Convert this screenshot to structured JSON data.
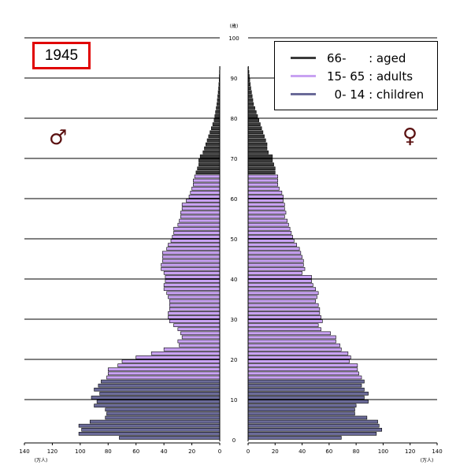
{
  "chart_data": {
    "type": "bar",
    "subtype": "population-pyramid",
    "year_label": "1945",
    "unit_age": "(歳)",
    "unit_population": "(万人)",
    "male_symbol": "♂",
    "female_symbol": "♀",
    "legend": [
      {
        "label": "66-      : aged",
        "color": "#3a3a3a"
      },
      {
        "label": "15- 65 : adults",
        "color": "#c8a2f2"
      },
      {
        "label": "  0- 14 : children",
        "color": "#6a6a98"
      }
    ],
    "colors": {
      "aged": "#3a3a3a",
      "adults": "#c8a2f2",
      "children": "#6a6a98"
    },
    "age_ticks": [
      "0",
      "10",
      "20",
      "30",
      "40",
      "50",
      "60",
      "70",
      "80",
      "90",
      "100"
    ],
    "x_ticks_male": [
      "140",
      "120",
      "100",
      "80",
      "60",
      "40",
      "20",
      "0"
    ],
    "x_ticks_female": [
      "0",
      "20",
      "40",
      "60",
      "80",
      "100",
      "120",
      "140"
    ],
    "xlim": [
      0,
      140
    ],
    "ylim": [
      0,
      100
    ],
    "grid": "horizontal every 10 years",
    "ages": [
      0,
      1,
      2,
      3,
      4,
      5,
      6,
      7,
      8,
      9,
      10,
      11,
      12,
      13,
      14,
      15,
      16,
      17,
      18,
      19,
      20,
      21,
      22,
      23,
      24,
      25,
      26,
      27,
      28,
      29,
      30,
      31,
      32,
      33,
      34,
      35,
      36,
      37,
      38,
      39,
      40,
      41,
      42,
      43,
      44,
      45,
      46,
      47,
      48,
      49,
      50,
      51,
      52,
      53,
      54,
      55,
      56,
      57,
      58,
      59,
      60,
      61,
      62,
      63,
      64,
      65,
      66,
      67,
      68,
      69,
      70,
      71,
      72,
      73,
      74,
      75,
      76,
      77,
      78,
      79,
      80,
      81,
      82,
      83,
      84,
      85,
      86,
      87,
      88,
      89,
      90,
      91,
      92
    ],
    "male": [
      72,
      101,
      99,
      101,
      93,
      82,
      81,
      82,
      90,
      88,
      92,
      86,
      90,
      87,
      85,
      81,
      80,
      80,
      73,
      70,
      60,
      49,
      40,
      29,
      30,
      27,
      28,
      30,
      33,
      36,
      37,
      37,
      36,
      36,
      36,
      37,
      38,
      40,
      40,
      39,
      39,
      40,
      42,
      42,
      41,
      41,
      41,
      38,
      37,
      35,
      34,
      33,
      33,
      30,
      29,
      28,
      28,
      27,
      27,
      24,
      22,
      21,
      20,
      19,
      19,
      18,
      17,
      16,
      15,
      15,
      14,
      12,
      11,
      10,
      9,
      8,
      7,
      6,
      5,
      4,
      3.5,
      3,
      2.5,
      2,
      1.7,
      1.4,
      1.1,
      0.8,
      0.6,
      0.4,
      0.3,
      0.2,
      0.1
    ],
    "female": [
      69,
      95,
      99,
      97,
      96,
      88,
      79,
      79,
      80,
      89,
      86,
      89,
      86,
      84,
      86,
      84,
      82,
      81,
      81,
      75,
      76,
      74,
      69,
      68,
      65,
      65,
      61,
      54,
      52,
      55,
      54,
      53,
      53,
      52,
      50,
      51,
      52,
      50,
      48,
      47,
      47,
      40,
      42,
      41,
      41,
      40,
      39,
      38,
      36,
      34,
      33,
      32,
      31,
      30,
      29,
      27,
      28,
      27,
      27,
      26,
      26,
      25,
      23,
      22,
      22,
      22,
      20,
      20,
      19,
      18,
      18,
      15,
      14,
      14,
      13,
      12,
      11,
      10,
      9,
      8,
      7,
      6,
      5,
      4,
      3.5,
      3,
      2.5,
      2,
      1.6,
      1.2,
      0.9,
      0.6,
      0.3
    ]
  }
}
